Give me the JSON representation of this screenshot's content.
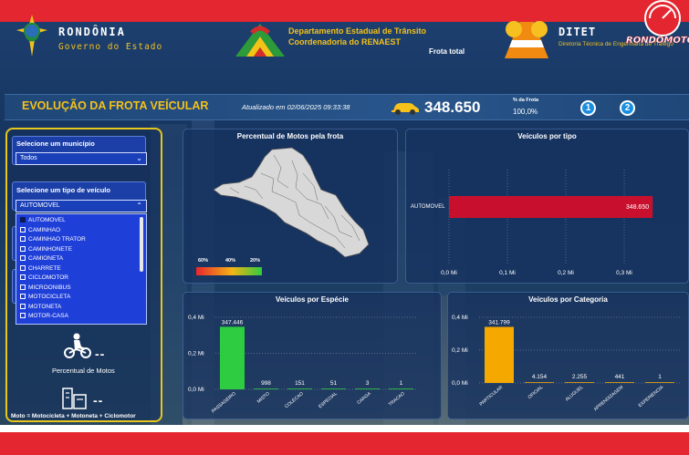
{
  "header": {
    "state_name": "RONDÔNIA",
    "state_sub": "Governo do Estado",
    "detran_title": "Departamento Estadual de Trânsito",
    "detran_sub": "Coordenadoria do RENAEST",
    "frota_total_label": "Frota total",
    "ditet_title": "DITET",
    "ditet_sub": "Diretoria Técnica de Engenharia de Tráfego",
    "brand": "RONDOMOTOR"
  },
  "title_bar": {
    "title": "EVOLUÇÃO DA FROTA VEÍCULAR",
    "updated": "Atualizado em 02/06/2025 09:33:38",
    "total_value": "348.650",
    "pct_label": "% da Frota",
    "pct_value": "100,0%",
    "pages": [
      "1",
      "2"
    ]
  },
  "filters": {
    "municipio_label": "Selecione um município",
    "municipio_value": "Todos",
    "tipo_label": "Selecione um tipo de veículo",
    "tipo_value": "AUTOMOVEL",
    "dropdown_options": [
      "AUTOMOVEL",
      "CAMINHAO",
      "CAMINHAO TRATOR",
      "CAMINHONETE",
      "CAMIONETA",
      "CHARRETE",
      "CICLOMOTOR",
      "MICROONIBUS",
      "MOTOCICLETA",
      "MOTONETA",
      "MOTOR-CASA"
    ],
    "hidden_label_fragment_1": "S",
    "hidden_label_fragment_2": "S",
    "motos_value": "--",
    "motos_label": "Percentual de Motos",
    "other_value": "--",
    "footnote": "Moto = Motocicleta + Motoneta + Ciclomotor"
  },
  "map_card": {
    "title": "Percentual de Motos pela frota",
    "legend": [
      "60%",
      "40%",
      "20%"
    ]
  },
  "colors": {
    "accent": "#f5c11a",
    "bar_tipo": "#c8102e",
    "bar_especie": "#2ecc40",
    "bar_categoria": "#f5a800",
    "header_red": "#e3262f"
  },
  "chart_data": [
    {
      "type": "bar",
      "title": "Veículos por tipo",
      "orientation": "horizontal",
      "categories": [
        "AUTOMOVEL"
      ],
      "values": [
        348650
      ],
      "value_labels": [
        "348.650"
      ],
      "xticks": [
        "0,0 Mi",
        "0,1 Mi",
        "0,2 Mi",
        "0,3 Mi"
      ],
      "xlim": [
        0,
        0.35
      ],
      "unit_scale": 1000000
    },
    {
      "type": "bar",
      "title": "Veículos por Espécie",
      "categories": [
        "PASSAGEIRO",
        "MISTO",
        "COLECAO",
        "ESPECIAL",
        "CARGA",
        "TRACAO"
      ],
      "values": [
        347446,
        998,
        151,
        51,
        3,
        1
      ],
      "value_labels": [
        "347.446",
        "998",
        "151",
        "51",
        "3",
        "1"
      ],
      "yticks": [
        "0,4 Mi",
        "0,2 Mi",
        "0,0 Mi"
      ],
      "ylim": [
        0,
        0.4
      ],
      "unit_scale": 1000000
    },
    {
      "type": "bar",
      "title": "Veículos por Categoria",
      "categories": [
        "PARTICULAR",
        "OFICIAL",
        "ALUGUEL",
        "APRENDIZAGEM",
        "EXPERIENCIA"
      ],
      "values": [
        341799,
        4154,
        2255,
        441,
        1
      ],
      "value_labels": [
        "341.799",
        "4.154",
        "2.255",
        "441",
        "1"
      ],
      "yticks": [
        "0,4 Mi",
        "0,2 Mi",
        "0,0 Mi"
      ],
      "ylim": [
        0,
        0.4
      ],
      "unit_scale": 1000000
    }
  ]
}
